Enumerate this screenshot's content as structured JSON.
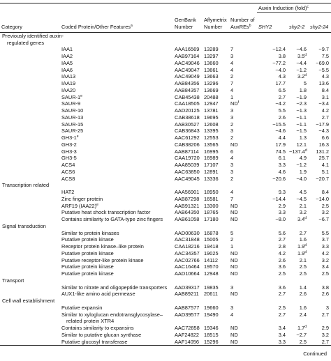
{
  "header": {
    "category": "Category",
    "protein": {
      "text": "Coded Protein/Other Features",
      "sup": "a"
    },
    "genbank": "GenBank Number",
    "affymetrix": "Affymetrix Number",
    "auxres": {
      "text": "Number of AuxREs",
      "sup": "b"
    },
    "induction": {
      "text": "Auxin Induction (fold)",
      "sup": "c"
    },
    "lines": [
      "SHY2",
      "shy2-2",
      "shy2-24"
    ]
  },
  "sections": [
    {
      "label": "Previously identified auxin-regulated genes",
      "rows": [
        {
          "bold": true,
          "cells": [
            "IAA1",
            "AAA16569",
            "13289",
            "7",
            "−12.4",
            "−4.6",
            "−9.7"
          ]
        },
        {
          "bold": true,
          "cells": [
            "IAA2",
            "AAB97164",
            "13297",
            "3",
            "3.8",
            {
              "text": "3.5",
              "sup": "d"
            },
            "7.5"
          ]
        },
        {
          "bold": true,
          "cells": [
            "IAA5",
            "AAC49046",
            "13660",
            "4",
            "−77.2",
            "−4.4",
            "−69.0"
          ]
        },
        {
          "bold": true,
          "cells": [
            "IAA6",
            "AAC49047",
            "13661",
            "4",
            "−4.0",
            "−1.2",
            "−5.5"
          ]
        },
        {
          "bold": true,
          "cells": [
            "IAA13",
            "AAC49049",
            "13663",
            "2",
            "4.3",
            {
              "text": "3.2",
              "sup": "d"
            },
            "4.3"
          ]
        },
        {
          "bold": true,
          "cells": [
            "IAA19",
            "AAB84356",
            "13296",
            "7",
            "17.7",
            "5",
            "13.6"
          ]
        },
        {
          "bold": true,
          "cells": [
            "IAA20",
            "AAB84357",
            "13669",
            "4",
            "6.5",
            "1.8",
            "8.4"
          ]
        },
        {
          "bold": true,
          "cells": [
            {
              "text": "SAUR-1",
              "sup": "e"
            },
            "CAB45438",
            "20488",
            "1",
            "2.7",
            "−1.9",
            "3.1"
          ]
        },
        {
          "bold": false,
          "cells": [
            "SAUR-9",
            "CAA18505",
            "12947",
            {
              "text": "ND",
              "sup": "f"
            },
            "−4.2",
            "−2.3",
            "−3.4"
          ]
        },
        {
          "bold": true,
          "cells": [
            "SAUR-10",
            "AAD20125",
            "13781",
            "3",
            "5.5",
            "−1.3",
            "4.2"
          ]
        },
        {
          "bold": true,
          "cells": [
            "SAUR-13",
            "CAB38618",
            "19695",
            "3",
            "2.6",
            "−1.1",
            "2.7"
          ]
        },
        {
          "bold": true,
          "cells": [
            "SAUR-15",
            "AAB30527",
            "12608",
            "2",
            "−15.5",
            "−1.1",
            "−17.9"
          ]
        },
        {
          "bold": true,
          "cells": [
            "SAUR-25",
            "CAB36843",
            "13395",
            "3",
            "−4.6",
            "−1.5",
            "−4.3"
          ]
        },
        {
          "bold": true,
          "cells": [
            {
              "text": "GH3-1",
              "sup": "e"
            },
            "AAC61292",
            "12553",
            "2",
            "4.4",
            "1.3",
            "6.6"
          ]
        },
        {
          "bold": false,
          "cells": [
            "GH3-2",
            "CAB38206",
            "13565",
            "ND",
            "17.9",
            "12.1",
            "16.3"
          ]
        },
        {
          "bold": true,
          "cells": [
            "GH3-3",
            "AAB87114",
            "16995",
            "6",
            "74.5",
            {
              "text": "−137.4",
              "sup": "d"
            },
            "131.2"
          ]
        },
        {
          "bold": true,
          "cells": [
            "GH3-5",
            "CAA19720",
            "16989",
            "4",
            "6.1",
            "4.9",
            "25.7"
          ]
        },
        {
          "bold": true,
          "cells": [
            "ACS4",
            "AAA85039",
            "17107",
            "3",
            "3.3",
            "−1.2",
            "4.1"
          ]
        },
        {
          "bold": true,
          "cells": [
            "ACS6",
            "AAC63850",
            "12891",
            "3",
            "4.6",
            "1.9",
            "5.1"
          ]
        },
        {
          "bold": true,
          "cells": [
            "ACS8",
            "AAC49045",
            "13336",
            "2",
            "−20.6",
            "−4.0",
            "−20.7"
          ]
        }
      ]
    },
    {
      "label": "Transcription related",
      "rows": [
        {
          "bold": true,
          "cells": [
            "HAT2",
            "AAA56901",
            "18950",
            "4",
            "9.3",
            "4.5",
            "8.4"
          ]
        },
        {
          "bold": true,
          "cells": [
            "Zinc finger protein",
            "AAB87298",
            "16581",
            "7",
            "−14.4",
            "−4.5",
            "−14.0"
          ]
        },
        {
          "bold": false,
          "cells": [
            {
              "text": "ARF19 (IAA22)",
              "sup": "e"
            },
            "AAB91321",
            "13300",
            "ND",
            "2.9",
            "2.1",
            "2.5"
          ]
        },
        {
          "bold": false,
          "cells": [
            "Putative heat shock transcription factor",
            "AAB64350",
            "18765",
            "ND",
            "3.3",
            "3.2",
            "3.2"
          ]
        },
        {
          "bold": false,
          "cells": [
            "Contains similarity to GATA-type zinc fingers",
            "AAB61058",
            "17180",
            "ND",
            "−8.0",
            {
              "text": "3.4",
              "sup": "d"
            },
            "−6.7"
          ]
        }
      ]
    },
    {
      "label": "Signal transduction",
      "rows": [
        {
          "bold": true,
          "cells": [
            "Similar to protein kinases",
            "AAD00630",
            "16878",
            "5",
            "5.6",
            "2.7",
            "5.5"
          ]
        },
        {
          "bold": true,
          "cells": [
            "Putative protein kinase",
            "AAC31848",
            "15005",
            "2",
            "2.7",
            "1.6",
            "3.7"
          ]
        },
        {
          "bold": true,
          "cells": [
            "Receptor protein kinase–like protein",
            "CAA18216",
            "19418",
            "1",
            "2.8",
            {
              "text": "1.9",
              "sup": "d"
            },
            "3.3"
          ]
        },
        {
          "bold": false,
          "cells": [
            "Putative protein kinase",
            "AAC34357",
            "19025",
            "ND",
            "4.2",
            {
              "text": "1.9",
              "sup": "d"
            },
            "4.2"
          ]
        },
        {
          "bold": false,
          "cells": [
            "Putative receptor-like protein kinase",
            "AAC02766",
            "14112",
            "ND",
            "2.6",
            "2.1",
            "3.2"
          ]
        },
        {
          "bold": false,
          "cells": [
            "Putative protein kinase",
            "AAC16464",
            "19570",
            "ND",
            "3.6",
            "2.5",
            "3.4"
          ]
        },
        {
          "bold": false,
          "cells": [
            "Putative protein kinase",
            "AAD10664",
            "12948",
            "ND",
            "2.5",
            "2.5",
            "2.5"
          ]
        }
      ]
    },
    {
      "label": "Transport",
      "rows": [
        {
          "bold": true,
          "cells": [
            "Similar to nitrate and oligopeptide transporters",
            "AAD39317",
            "19835",
            "3",
            "3.6",
            "1.4",
            "3.8"
          ]
        },
        {
          "bold": false,
          "cells": [
            "AUX1-like amino acid permease",
            "AAB89211",
            "20611",
            "ND",
            "2.7",
            "2.6",
            "2.6"
          ]
        }
      ]
    },
    {
      "label": "Cell wall establishment",
      "rows": [
        {
          "bold": true,
          "cells": [
            "Putative expansin",
            "AAB87577",
            "19660",
            "3",
            "2.5",
            "1.6",
            "3"
          ]
        },
        {
          "bold": true,
          "cells": [
            "Similar to xyloglucan endotransglycosylase–related protein XTR4",
            "AAD39577",
            "19490",
            "4",
            "2.7",
            "2.4",
            "2.7"
          ]
        },
        {
          "bold": false,
          "cells": [
            "Contains similarity to expansins",
            "AAC72858",
            "19346",
            "ND",
            "3.4",
            {
              "text": "1.7",
              "sup": "d"
            },
            "2.9"
          ]
        },
        {
          "bold": false,
          "cells": [
            "Similar to putative glucan synthase",
            "AAF24822",
            "18515",
            "ND",
            "3.4",
            "−2.7",
            "3.2"
          ]
        },
        {
          "bold": false,
          "cells": [
            "Putative glucosyl transferase",
            "AAF14056",
            "15296",
            "ND",
            "3.3",
            "2.5",
            "2.7"
          ]
        }
      ]
    }
  ],
  "footer": "Continued"
}
